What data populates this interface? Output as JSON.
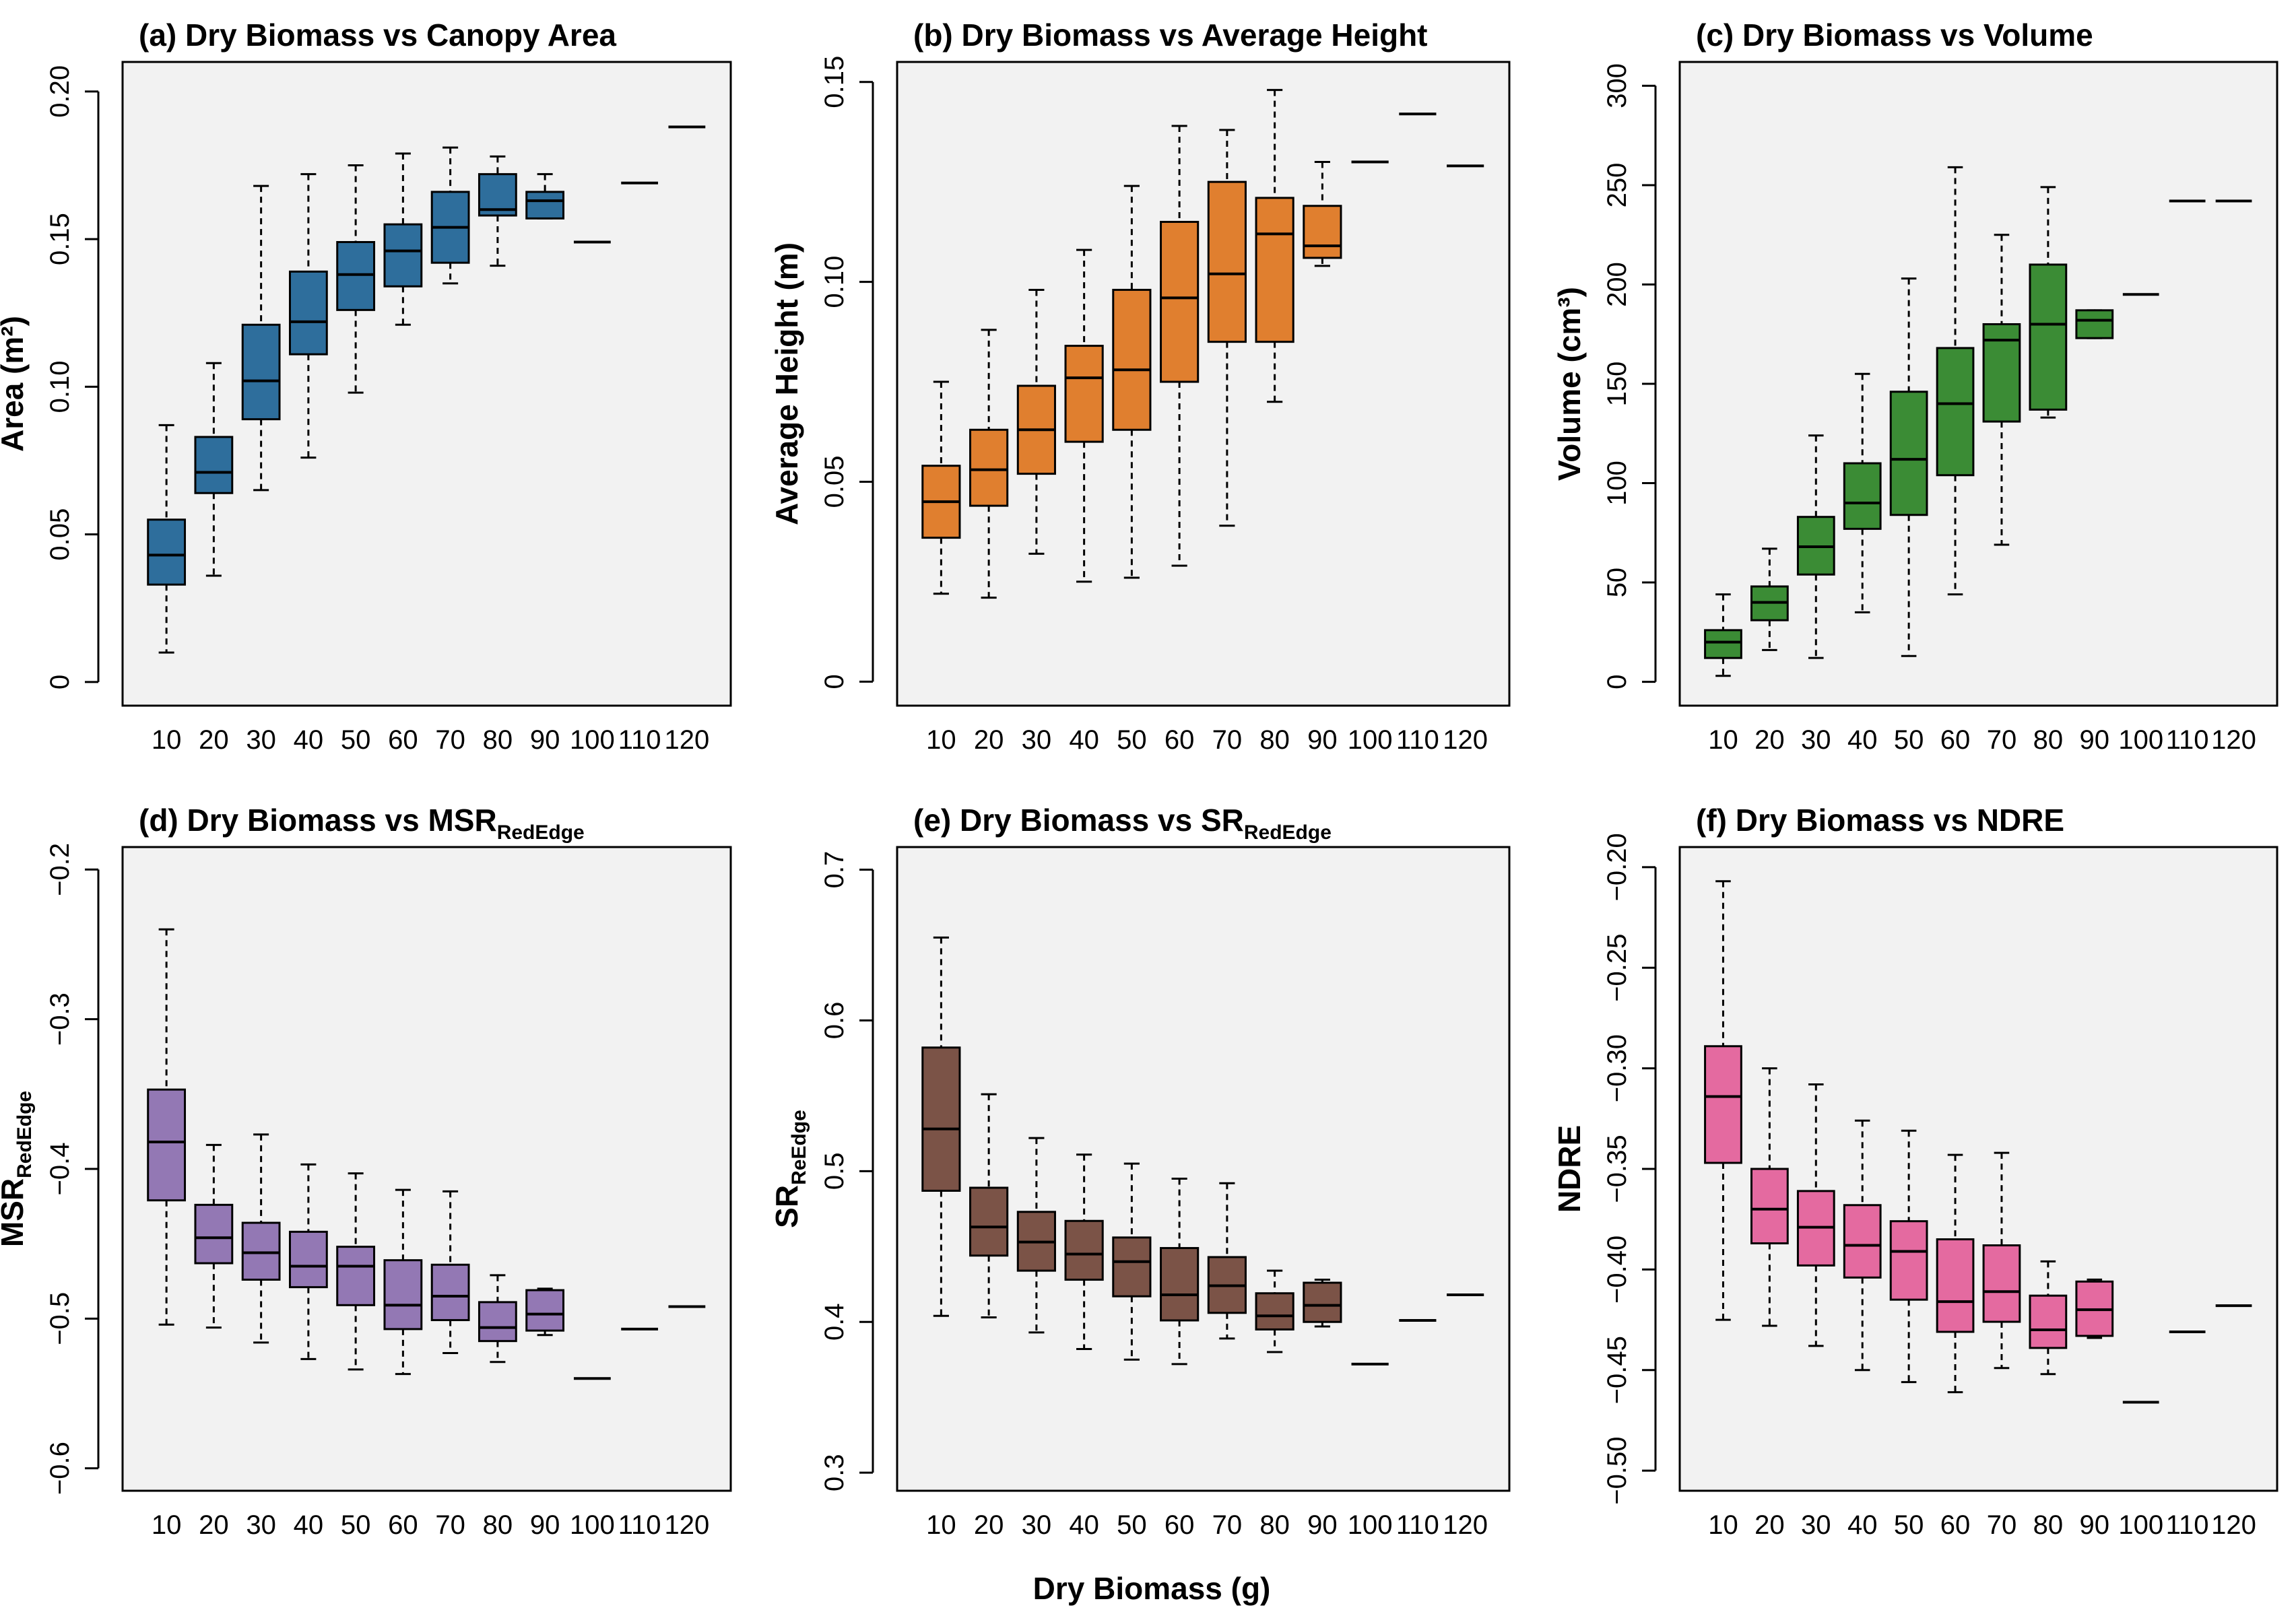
{
  "figure": {
    "xlabel": "Dry Biomass (g)"
  },
  "chart_data": [
    {
      "type": "boxplot",
      "id": "a",
      "title": "(a) Dry Biomass vs Canopy Area",
      "title_sub": "",
      "ylabel": "Area (m²)",
      "ylabel_sub": "",
      "color": "#2e6e9c",
      "ylim": [
        -0.008,
        0.21
      ],
      "yticks": [
        0,
        0.05,
        0.1,
        0.15,
        0.2
      ],
      "ytick_labels": [
        "0",
        "0.05",
        "0.10",
        "0.15",
        "0.20"
      ],
      "categories": [
        "10",
        "20",
        "30",
        "40",
        "50",
        "60",
        "70",
        "80",
        "90",
        "100",
        "110",
        "120"
      ],
      "boxes": [
        {
          "min": 0.01,
          "q1": 0.033,
          "median": 0.043,
          "q3": 0.055,
          "max": 0.087
        },
        {
          "min": 0.036,
          "q1": 0.064,
          "median": 0.071,
          "q3": 0.083,
          "max": 0.108
        },
        {
          "min": 0.065,
          "q1": 0.089,
          "median": 0.102,
          "q3": 0.121,
          "max": 0.168
        },
        {
          "min": 0.076,
          "q1": 0.111,
          "median": 0.122,
          "q3": 0.139,
          "max": 0.172
        },
        {
          "min": 0.098,
          "q1": 0.126,
          "median": 0.138,
          "q3": 0.149,
          "max": 0.175
        },
        {
          "min": 0.121,
          "q1": 0.134,
          "median": 0.146,
          "q3": 0.155,
          "max": 0.179
        },
        {
          "min": 0.135,
          "q1": 0.142,
          "median": 0.154,
          "q3": 0.166,
          "max": 0.181
        },
        {
          "min": 0.141,
          "q1": 0.158,
          "median": 0.16,
          "q3": 0.172,
          "max": 0.178
        },
        {
          "min": 0.157,
          "q1": 0.157,
          "median": 0.163,
          "q3": 0.166,
          "max": 0.172
        },
        {
          "median": 0.149
        },
        {
          "median": 0.169
        },
        {
          "median": 0.188
        }
      ]
    },
    {
      "type": "boxplot",
      "id": "b",
      "title": "(b) Dry Biomass vs Average Height",
      "title_sub": "",
      "ylabel": "Average Height (m)",
      "ylabel_sub": "",
      "color": "#e07f2f",
      "ylim": [
        -0.006,
        0.155
      ],
      "yticks": [
        0,
        0.05,
        0.1,
        0.15
      ],
      "ytick_labels": [
        "0",
        "0.05",
        "0.10",
        "0.15"
      ],
      "categories": [
        "10",
        "20",
        "30",
        "40",
        "50",
        "60",
        "70",
        "80",
        "90",
        "100",
        "110",
        "120"
      ],
      "boxes": [
        {
          "min": 0.022,
          "q1": 0.036,
          "median": 0.045,
          "q3": 0.054,
          "max": 0.075
        },
        {
          "min": 0.021,
          "q1": 0.044,
          "median": 0.053,
          "q3": 0.063,
          "max": 0.088
        },
        {
          "min": 0.032,
          "q1": 0.052,
          "median": 0.063,
          "q3": 0.074,
          "max": 0.098
        },
        {
          "min": 0.025,
          "q1": 0.06,
          "median": 0.076,
          "q3": 0.084,
          "max": 0.108
        },
        {
          "min": 0.026,
          "q1": 0.063,
          "median": 0.078,
          "q3": 0.098,
          "max": 0.124
        },
        {
          "min": 0.029,
          "q1": 0.075,
          "median": 0.096,
          "q3": 0.115,
          "max": 0.139
        },
        {
          "min": 0.039,
          "q1": 0.085,
          "median": 0.102,
          "q3": 0.125,
          "max": 0.138
        },
        {
          "min": 0.07,
          "q1": 0.085,
          "median": 0.112,
          "q3": 0.121,
          "max": 0.148
        },
        {
          "min": 0.104,
          "q1": 0.106,
          "median": 0.109,
          "q3": 0.119,
          "max": 0.13
        },
        {
          "median": 0.13
        },
        {
          "median": 0.142
        },
        {
          "median": 0.129
        }
      ]
    },
    {
      "type": "boxplot",
      "id": "c",
      "title": "(c) Dry Biomass vs Volume",
      "title_sub": "",
      "ylabel": "Volume (cm³)",
      "ylabel_sub": "",
      "color": "#3b8c35",
      "ylim": [
        -12,
        312
      ],
      "yticks": [
        0,
        50,
        100,
        150,
        200,
        250,
        300
      ],
      "ytick_labels": [
        "0",
        "50",
        "100",
        "150",
        "200",
        "250",
        "300"
      ],
      "categories": [
        "10",
        "20",
        "30",
        "40",
        "50",
        "60",
        "70",
        "80",
        "90",
        "100",
        "110",
        "120"
      ],
      "boxes": [
        {
          "min": 3,
          "q1": 12,
          "median": 20,
          "q3": 26,
          "max": 44
        },
        {
          "min": 16,
          "q1": 31,
          "median": 40,
          "q3": 48,
          "max": 67
        },
        {
          "min": 12,
          "q1": 54,
          "median": 68,
          "q3": 83,
          "max": 124
        },
        {
          "min": 35,
          "q1": 77,
          "median": 90,
          "q3": 110,
          "max": 155
        },
        {
          "min": 13,
          "q1": 84,
          "median": 112,
          "q3": 146,
          "max": 203
        },
        {
          "min": 44,
          "q1": 104,
          "median": 140,
          "q3": 168,
          "max": 259
        },
        {
          "min": 69,
          "q1": 131,
          "median": 172,
          "q3": 180,
          "max": 225
        },
        {
          "min": 133,
          "q1": 137,
          "median": 180,
          "q3": 210,
          "max": 249
        },
        {
          "min": 173,
          "q1": 173,
          "median": 182,
          "q3": 187,
          "max": 187
        },
        {
          "median": 195
        },
        {
          "median": 242
        },
        {
          "median": 242
        }
      ]
    },
    {
      "type": "boxplot",
      "id": "d",
      "title": "(d) Dry Biomass vs MSR",
      "title_sub": "RedEdge",
      "ylabel": "MSR",
      "ylabel_sub": "RedEdge",
      "color": "#9378b4",
      "ylim": [
        -0.615,
        -0.185
      ],
      "yticks": [
        -0.6,
        -0.5,
        -0.4,
        -0.3,
        -0.2
      ],
      "ytick_labels": [
        "−0.6",
        "−0.5",
        "−0.4",
        "−0.3",
        "−0.2"
      ],
      "categories": [
        "10",
        "20",
        "30",
        "40",
        "50",
        "60",
        "70",
        "80",
        "90",
        "100",
        "110",
        "120"
      ],
      "boxes": [
        {
          "min": -0.504,
          "q1": -0.421,
          "median": -0.382,
          "q3": -0.347,
          "max": -0.24
        },
        {
          "min": -0.506,
          "q1": -0.463,
          "median": -0.446,
          "q3": -0.424,
          "max": -0.384
        },
        {
          "min": -0.516,
          "q1": -0.474,
          "median": -0.456,
          "q3": -0.436,
          "max": -0.377
        },
        {
          "min": -0.527,
          "q1": -0.479,
          "median": -0.465,
          "q3": -0.442,
          "max": -0.397
        },
        {
          "min": -0.534,
          "q1": -0.491,
          "median": -0.465,
          "q3": -0.452,
          "max": -0.403
        },
        {
          "min": -0.537,
          "q1": -0.507,
          "median": -0.491,
          "q3": -0.461,
          "max": -0.414
        },
        {
          "min": -0.523,
          "q1": -0.501,
          "median": -0.485,
          "q3": -0.464,
          "max": -0.415
        },
        {
          "min": -0.529,
          "q1": -0.515,
          "median": -0.506,
          "q3": -0.489,
          "max": -0.471
        },
        {
          "min": -0.511,
          "q1": -0.508,
          "median": -0.497,
          "q3": -0.481,
          "max": -0.48
        },
        {
          "median": -0.54
        },
        {
          "median": -0.507
        },
        {
          "median": -0.492
        }
      ]
    },
    {
      "type": "boxplot",
      "id": "e",
      "title": "(e) Dry Biomass vs SR",
      "title_sub": "RedEdge",
      "ylabel": "SR",
      "ylabel_sub": "ReEdge",
      "color": "#7b5347",
      "ylim": [
        0.288,
        0.715
      ],
      "yticks": [
        0.3,
        0.4,
        0.5,
        0.6,
        0.7
      ],
      "ytick_labels": [
        "0.3",
        "0.4",
        "0.5",
        "0.6",
        "0.7"
      ],
      "categories": [
        "10",
        "20",
        "30",
        "40",
        "50",
        "60",
        "70",
        "80",
        "90",
        "100",
        "110",
        "120"
      ],
      "boxes": [
        {
          "min": 0.404,
          "q1": 0.487,
          "median": 0.528,
          "q3": 0.582,
          "max": 0.655
        },
        {
          "min": 0.403,
          "q1": 0.444,
          "median": 0.463,
          "q3": 0.489,
          "max": 0.551
        },
        {
          "min": 0.393,
          "q1": 0.434,
          "median": 0.453,
          "q3": 0.473,
          "max": 0.522
        },
        {
          "min": 0.382,
          "q1": 0.428,
          "median": 0.445,
          "q3": 0.467,
          "max": 0.511
        },
        {
          "min": 0.375,
          "q1": 0.417,
          "median": 0.44,
          "q3": 0.456,
          "max": 0.505
        },
        {
          "min": 0.372,
          "q1": 0.401,
          "median": 0.418,
          "q3": 0.449,
          "max": 0.495
        },
        {
          "min": 0.389,
          "q1": 0.406,
          "median": 0.424,
          "q3": 0.443,
          "max": 0.492
        },
        {
          "min": 0.38,
          "q1": 0.395,
          "median": 0.404,
          "q3": 0.419,
          "max": 0.434
        },
        {
          "min": 0.397,
          "q1": 0.4,
          "median": 0.411,
          "q3": 0.426,
          "max": 0.428
        },
        {
          "median": 0.372
        },
        {
          "median": 0.401
        },
        {
          "median": 0.418
        }
      ]
    },
    {
      "type": "boxplot",
      "id": "f",
      "title": "(f) Dry Biomass vs NDRE",
      "title_sub": "",
      "ylabel": "NDRE",
      "ylabel_sub": "",
      "color": "#e46aa0",
      "ylim": [
        -0.51,
        -0.19
      ],
      "yticks": [
        -0.5,
        -0.45,
        -0.4,
        -0.35,
        -0.3,
        -0.25,
        -0.2
      ],
      "ytick_labels": [
        "−0.50",
        "−0.45",
        "−0.40",
        "−0.35",
        "−0.30",
        "−0.25",
        "−0.20"
      ],
      "categories": [
        "10",
        "20",
        "30",
        "40",
        "50",
        "60",
        "70",
        "80",
        "90",
        "100",
        "110",
        "120"
      ],
      "boxes": [
        {
          "min": -0.425,
          "q1": -0.347,
          "median": -0.314,
          "q3": -0.289,
          "max": -0.207
        },
        {
          "min": -0.428,
          "q1": -0.387,
          "median": -0.37,
          "q3": -0.35,
          "max": -0.3
        },
        {
          "min": -0.438,
          "q1": -0.398,
          "median": -0.379,
          "q3": -0.361,
          "max": -0.308
        },
        {
          "min": -0.45,
          "q1": -0.404,
          "median": -0.388,
          "q3": -0.368,
          "max": -0.326
        },
        {
          "min": -0.456,
          "q1": -0.415,
          "median": -0.391,
          "q3": -0.376,
          "max": -0.331
        },
        {
          "min": -0.461,
          "q1": -0.431,
          "median": -0.416,
          "q3": -0.385,
          "max": -0.343
        },
        {
          "min": -0.449,
          "q1": -0.426,
          "median": -0.411,
          "q3": -0.388,
          "max": -0.342
        },
        {
          "min": -0.452,
          "q1": -0.439,
          "median": -0.43,
          "q3": -0.413,
          "max": -0.396
        },
        {
          "min": -0.434,
          "q1": -0.433,
          "median": -0.42,
          "q3": -0.406,
          "max": -0.405
        },
        {
          "median": -0.466
        },
        {
          "median": -0.431
        },
        {
          "median": -0.418
        }
      ]
    }
  ]
}
